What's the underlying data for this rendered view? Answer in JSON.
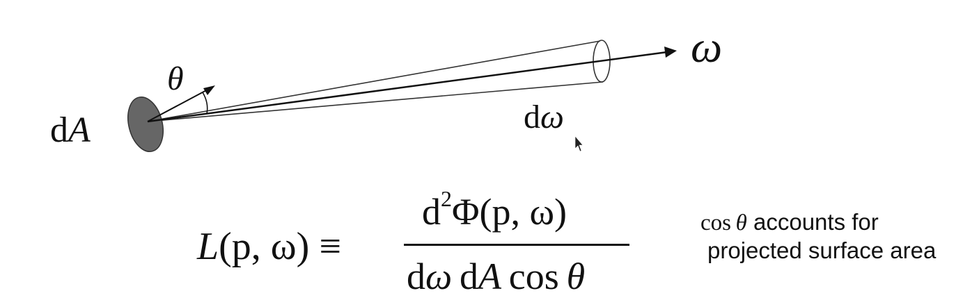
{
  "diagram": {
    "area_label_prefix": "d",
    "area_label_var": "A",
    "angle_label": "θ",
    "direction_label": "ω",
    "solid_angle_prefix": "d",
    "solid_angle_var": "ω",
    "area_color": "#666666",
    "line_color": "#111111"
  },
  "equation": {
    "lhs_var": "L",
    "lhs_args": "(p, ω)",
    "equiv": "≡",
    "numerator_d": "d",
    "numerator_exp": "2",
    "numerator_rest": "Φ(p, ω)",
    "denominator_d1": "d",
    "denominator_omega": "ω",
    "denominator_d2": "d",
    "denominator_A": "A",
    "denominator_cos": "cos",
    "denominator_theta": "θ"
  },
  "note": {
    "cos": "cos",
    "theta": "θ",
    "line1_rest": " accounts for",
    "line2": "projected surface area"
  }
}
